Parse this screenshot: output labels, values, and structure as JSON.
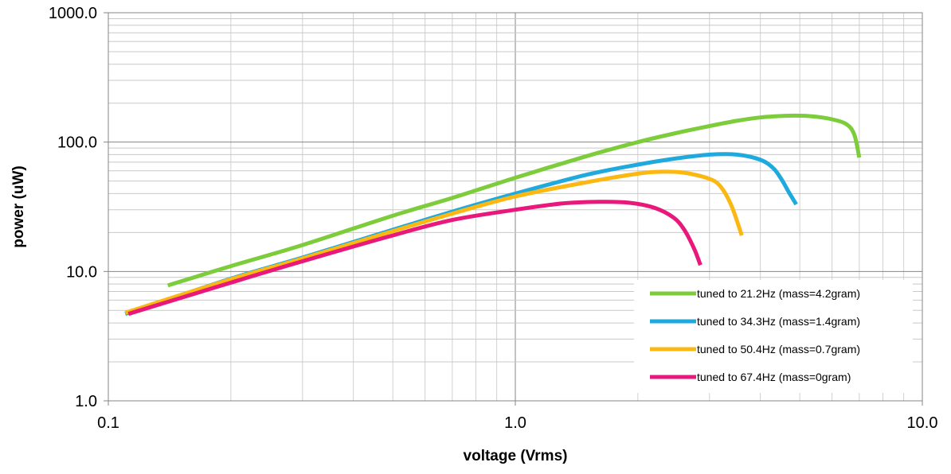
{
  "chart_data": {
    "type": "line",
    "title": "",
    "xlabel": "voltage (Vrms)",
    "ylabel": "power (uW)",
    "x_scale": "log",
    "y_scale": "log",
    "xlim": [
      0.1,
      10.0
    ],
    "ylim": [
      1.0,
      1000.0
    ],
    "x_ticks": [
      "0.1",
      "1.0",
      "10.0"
    ],
    "y_ticks": [
      "1.0",
      "10.0",
      "100.0",
      "1000.0"
    ],
    "grid": true,
    "legend_position": "bottom-right",
    "series": [
      {
        "name": "tuned to 21.2Hz (mass=4.2gram)",
        "color": "#7dcc3b",
        "points": [
          [
            0.14,
            7.8
          ],
          [
            0.2,
            11.0
          ],
          [
            0.3,
            16.0
          ],
          [
            0.5,
            27.0
          ],
          [
            0.7,
            37.0
          ],
          [
            1.0,
            53.0
          ],
          [
            1.5,
            78.0
          ],
          [
            2.0,
            100.0
          ],
          [
            2.5,
            118.0
          ],
          [
            3.0,
            133.0
          ],
          [
            3.5,
            146.0
          ],
          [
            4.0,
            155.0
          ],
          [
            4.5,
            159.0
          ],
          [
            5.0,
            160.0
          ],
          [
            5.5,
            157.0
          ],
          [
            6.0,
            150.0
          ],
          [
            6.5,
            138.0
          ],
          [
            6.8,
            115.0
          ],
          [
            7.0,
            76.0
          ]
        ]
      },
      {
        "name": "tuned to 34.3Hz (mass=1.4gram)",
        "color": "#1fa9dc",
        "points": [
          [
            0.11,
            4.7
          ],
          [
            0.2,
            8.8
          ],
          [
            0.3,
            12.8
          ],
          [
            0.5,
            21.0
          ],
          [
            0.7,
            29.0
          ],
          [
            1.0,
            40.0
          ],
          [
            1.5,
            56.0
          ],
          [
            2.0,
            67.0
          ],
          [
            2.5,
            75.0
          ],
          [
            3.0,
            80.0
          ],
          [
            3.5,
            80.0
          ],
          [
            4.0,
            73.0
          ],
          [
            4.3,
            63.0
          ],
          [
            4.5,
            52.0
          ],
          [
            4.7,
            41.0
          ],
          [
            4.9,
            33.0
          ]
        ]
      },
      {
        "name": "tuned to 50.4Hz (mass=0.7gram)",
        "color": "#fbb812",
        "points": [
          [
            0.11,
            4.8
          ],
          [
            0.2,
            8.7
          ],
          [
            0.3,
            12.6
          ],
          [
            0.5,
            20.5
          ],
          [
            0.7,
            28.0
          ],
          [
            1.0,
            38.0
          ],
          [
            1.5,
            49.0
          ],
          [
            2.0,
            57.0
          ],
          [
            2.3,
            59.0
          ],
          [
            2.6,
            58.0
          ],
          [
            3.0,
            52.0
          ],
          [
            3.2,
            45.0
          ],
          [
            3.4,
            32.0
          ],
          [
            3.6,
            19.0
          ]
        ]
      },
      {
        "name": "tuned to 67.4Hz (mass=0gram)",
        "color": "#e8197a",
        "points": [
          [
            0.112,
            4.7
          ],
          [
            0.2,
            8.2
          ],
          [
            0.3,
            12.0
          ],
          [
            0.5,
            19.0
          ],
          [
            0.7,
            25.0
          ],
          [
            1.0,
            30.0
          ],
          [
            1.3,
            33.5
          ],
          [
            1.6,
            34.5
          ],
          [
            1.9,
            34.0
          ],
          [
            2.2,
            31.0
          ],
          [
            2.45,
            26.0
          ],
          [
            2.6,
            21.0
          ],
          [
            2.75,
            15.0
          ],
          [
            2.85,
            11.2
          ]
        ]
      }
    ]
  }
}
